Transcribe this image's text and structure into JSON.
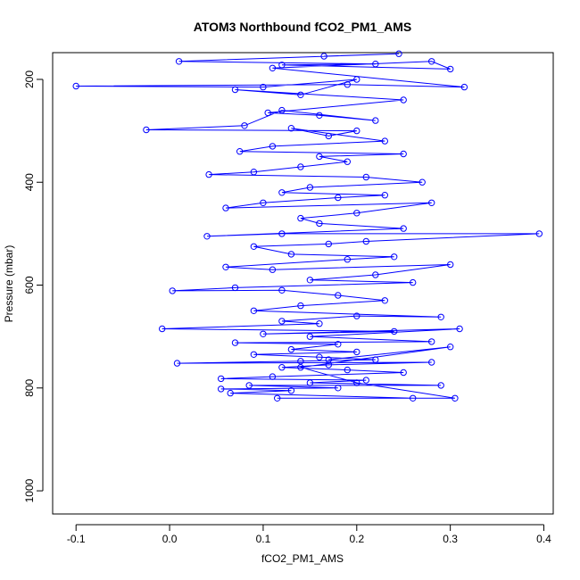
{
  "chart_data": {
    "type": "line",
    "title": "ATOM3 Northbound fCO2_PM1_AMS",
    "xlabel": "fCO2_PM1_AMS",
    "ylabel": "Pressure (mbar)",
    "xlim": [
      -0.125,
      0.41
    ],
    "ylim": [
      1045,
      148
    ],
    "y_reversed": true,
    "x_ticks": [
      -0.1,
      0.0,
      0.1,
      0.2,
      0.3,
      0.4
    ],
    "x_tick_labels": [
      "-0.1",
      "0.0",
      "0.1",
      "0.2",
      "0.3",
      "0.4"
    ],
    "y_ticks": [
      200,
      400,
      600,
      800,
      1000
    ],
    "y_tick_labels": [
      "200",
      "400",
      "600",
      "800",
      "1000"
    ],
    "grid": false,
    "legend": "none",
    "series": [
      {
        "color": "#0000ff",
        "marker": "open-circle",
        "points": [
          [
            0.165,
            155
          ],
          [
            0.245,
            150
          ],
          [
            0.01,
            165
          ],
          [
            0.22,
            170
          ],
          [
            0.12,
            172
          ],
          [
            0.3,
            180
          ],
          [
            0.28,
            165
          ],
          [
            0.11,
            178
          ],
          [
            0.315,
            215
          ],
          [
            0.19,
            210
          ],
          [
            -0.1,
            213
          ],
          [
            0.1,
            215
          ],
          [
            0.2,
            200
          ],
          [
            0.14,
            230
          ],
          [
            0.07,
            220
          ],
          [
            0.25,
            240
          ],
          [
            0.105,
            265
          ],
          [
            0.16,
            270
          ],
          [
            0.22,
            280
          ],
          [
            0.12,
            260
          ],
          [
            0.08,
            290
          ],
          [
            -0.025,
            298
          ],
          [
            0.2,
            300
          ],
          [
            0.17,
            310
          ],
          [
            0.13,
            295
          ],
          [
            0.23,
            320
          ],
          [
            0.11,
            330
          ],
          [
            0.075,
            340
          ],
          [
            0.25,
            345
          ],
          [
            0.16,
            350
          ],
          [
            0.19,
            360
          ],
          [
            0.14,
            370
          ],
          [
            0.09,
            380
          ],
          [
            0.042,
            385
          ],
          [
            0.21,
            390
          ],
          [
            0.27,
            400
          ],
          [
            0.15,
            410
          ],
          [
            0.12,
            420
          ],
          [
            0.23,
            425
          ],
          [
            0.18,
            430
          ],
          [
            0.1,
            440
          ],
          [
            0.06,
            450
          ],
          [
            0.28,
            440
          ],
          [
            0.2,
            460
          ],
          [
            0.14,
            470
          ],
          [
            0.16,
            480
          ],
          [
            0.25,
            490
          ],
          [
            0.04,
            505
          ],
          [
            0.12,
            500
          ],
          [
            0.395,
            500
          ],
          [
            0.21,
            515
          ],
          [
            0.17,
            520
          ],
          [
            0.09,
            525
          ],
          [
            0.13,
            540
          ],
          [
            0.24,
            545
          ],
          [
            0.19,
            550
          ],
          [
            0.06,
            565
          ],
          [
            0.11,
            570
          ],
          [
            0.3,
            560
          ],
          [
            0.22,
            580
          ],
          [
            0.15,
            590
          ],
          [
            0.26,
            595
          ],
          [
            0.07,
            605
          ],
          [
            0.003,
            611
          ],
          [
            0.12,
            610
          ],
          [
            0.18,
            620
          ],
          [
            0.23,
            630
          ],
          [
            0.14,
            640
          ],
          [
            0.09,
            650
          ],
          [
            0.29,
            662
          ],
          [
            0.2,
            660
          ],
          [
            0.12,
            670
          ],
          [
            0.16,
            675
          ],
          [
            -0.008,
            685
          ],
          [
            0.24,
            690
          ],
          [
            0.1,
            695
          ],
          [
            0.31,
            685
          ],
          [
            0.15,
            700
          ],
          [
            0.28,
            710
          ],
          [
            0.07,
            712
          ],
          [
            0.18,
            715
          ],
          [
            0.13,
            725
          ],
          [
            0.2,
            730
          ],
          [
            0.09,
            735
          ],
          [
            0.16,
            740
          ],
          [
            0.22,
            745
          ],
          [
            0.14,
            748
          ],
          [
            0.008,
            752
          ],
          [
            0.28,
            750
          ],
          [
            0.17,
            755
          ],
          [
            0.12,
            760
          ],
          [
            0.19,
            765
          ],
          [
            0.25,
            770
          ],
          [
            0.11,
            778
          ],
          [
            0.055,
            782
          ],
          [
            0.21,
            785
          ],
          [
            0.15,
            790
          ],
          [
            0.29,
            795
          ],
          [
            0.085,
            795
          ],
          [
            0.18,
            800
          ],
          [
            0.055,
            802
          ],
          [
            0.13,
            805
          ],
          [
            0.065,
            810
          ],
          [
            0.26,
            820
          ],
          [
            0.115,
            820
          ],
          [
            0.305,
            820
          ],
          [
            0.2,
            790
          ],
          [
            0.14,
            760
          ],
          [
            0.3,
            720
          ],
          [
            0.17,
            745
          ]
        ]
      }
    ]
  }
}
